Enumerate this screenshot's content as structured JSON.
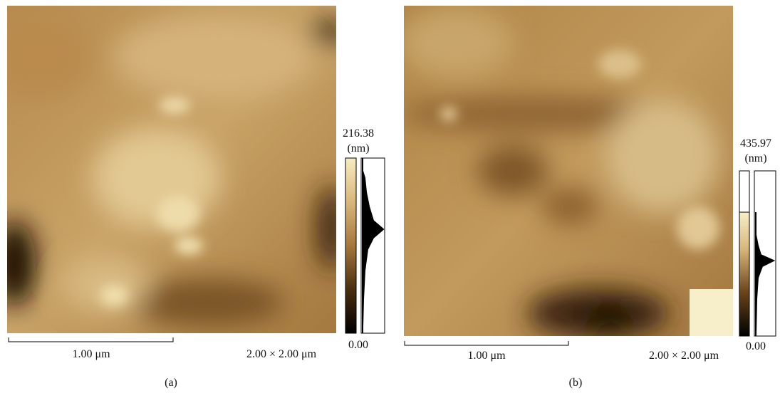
{
  "panels": [
    {
      "colorbar_max": "216.38",
      "unit": "(nm)",
      "colorbar_min": "0.00",
      "scale_bar": "1.00 μm",
      "scan_size": "2.00 × 2.00 μm",
      "caption": "(a)"
    },
    {
      "colorbar_max": "435.97",
      "unit": "(nm)",
      "colorbar_min": "0.00",
      "scale_bar": "1.00 μm",
      "scan_size": "2.00 × 2.00 μm",
      "caption": "(b)"
    }
  ]
}
